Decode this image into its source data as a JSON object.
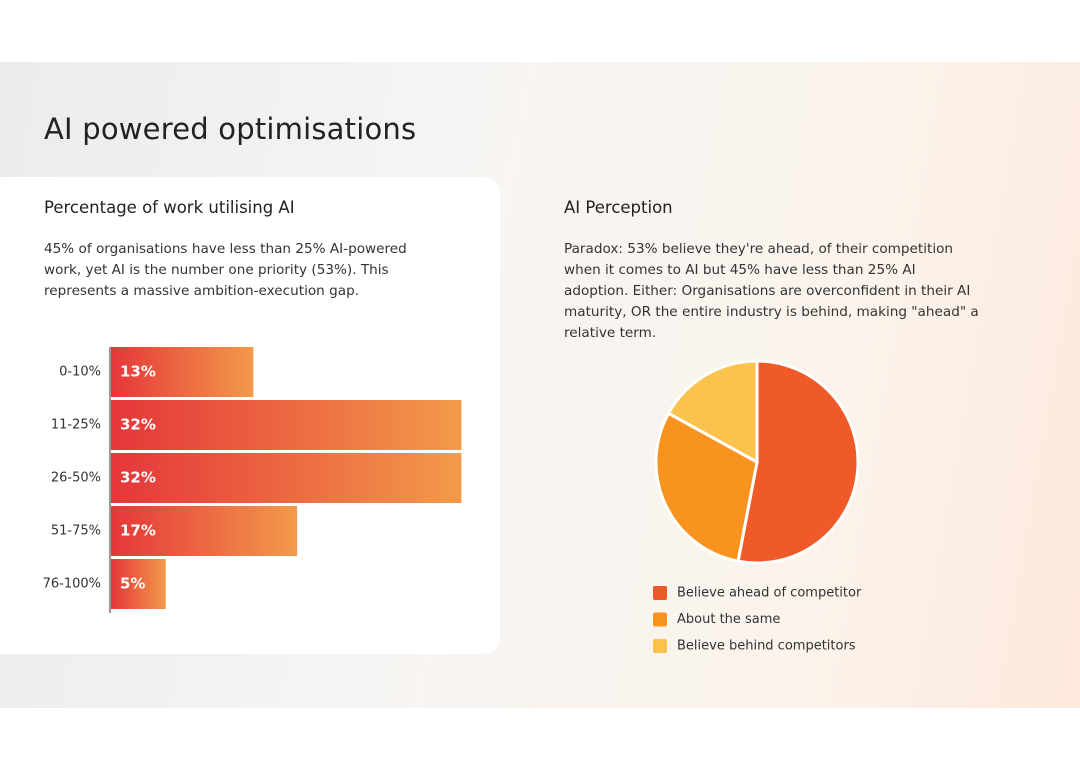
{
  "title": "AI powered optimisations",
  "chart_data": [
    {
      "type": "hbar",
      "title": "Percentage of work utilising AI",
      "subtitle": "45% of organisations have less than 25% AI-powered work, yet AI is the number one priority (53%). This represents a massive ambition-execution gap.",
      "categories": [
        "0-10%",
        "11-25%",
        "26-50%",
        "51-75%",
        "76-100%"
      ],
      "values": [
        13,
        32,
        32,
        17,
        5
      ],
      "value_labels": [
        "13%",
        "32%",
        "32%",
        "17%",
        "5%"
      ],
      "color": [
        "#e5363a",
        "#f39a4a"
      ]
    },
    {
      "type": "pie",
      "title": "AI Perception",
      "subtitle": "Paradox: 53% believe they're ahead, of their competition when it comes to AI but 45% have less than 25% AI adoption. Either: Organisations are overconfident in their  AI maturity, OR the entire industry is behind, making \"ahead\" a relative term.",
      "categories": [
        "Believe ahead of competitor",
        "About the same",
        "Believe behind competitors"
      ],
      "values": [
        53,
        30,
        17
      ],
      "colors": [
        "#f05a28",
        "#f7931e",
        "#fbc24e"
      ]
    }
  ]
}
